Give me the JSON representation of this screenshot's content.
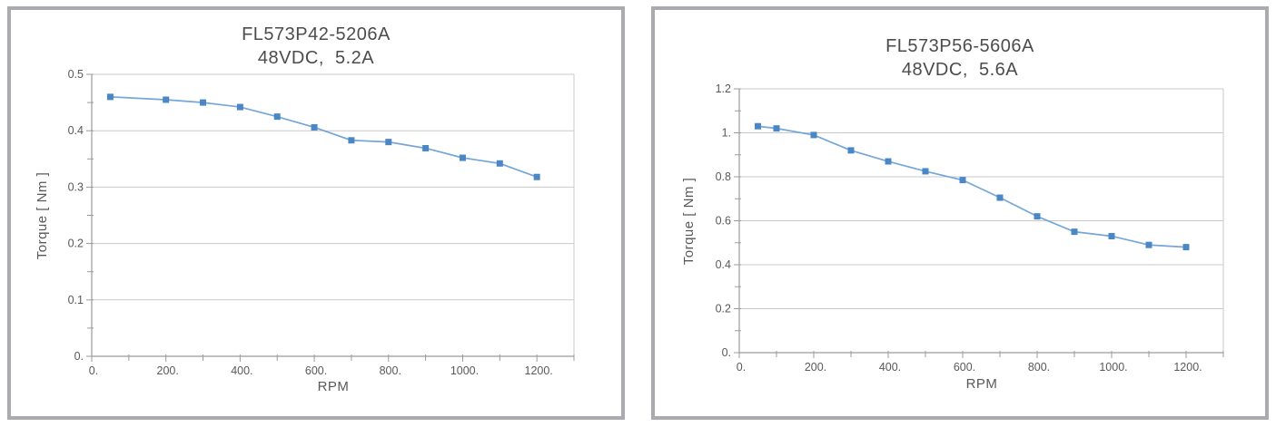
{
  "page": {
    "background": "#ffffff",
    "panel_border_color": "#ababaf"
  },
  "chart_data": [
    {
      "type": "line",
      "title": "FL573P42-5206A",
      "subtitle": "48VDC,  5.2A",
      "xlabel": "RPM",
      "ylabel": "Torque [ Nm ]",
      "x": [
        50,
        200,
        300,
        400,
        500,
        600,
        700,
        800,
        900,
        1000,
        1100,
        1200
      ],
      "y": [
        0.46,
        0.455,
        0.45,
        0.442,
        0.425,
        0.406,
        0.383,
        0.38,
        0.369,
        0.352,
        0.342,
        0.318
      ],
      "xlim": [
        0,
        1300
      ],
      "ylim": [
        0,
        0.5
      ],
      "x_major_ticks": [
        0,
        200,
        400,
        600,
        800,
        1000,
        1200
      ],
      "x_tick_labels": [
        "0.",
        "200.",
        "400.",
        "600.",
        "800.",
        "1000.",
        "1200."
      ],
      "x_minor_step": 100,
      "y_major_ticks": [
        0,
        0.1,
        0.2,
        0.3,
        0.4,
        0.5
      ],
      "y_tick_labels": [
        "0.",
        "0.1",
        "0.2",
        "0.3",
        "0.4",
        "0.5"
      ],
      "y_minor_step": 0.05,
      "grid": "horizontal",
      "legend": "none",
      "line_color": "#74a6da",
      "marker_color": "#4b87c4",
      "grid_color": "#c9c9c9",
      "axis_color": "#9b9b9b"
    },
    {
      "type": "line",
      "title": "FL573P56-5606A",
      "subtitle": "48VDC,  5.6A",
      "xlabel": "RPM",
      "ylabel": "Torque [ Nm ]",
      "x": [
        50,
        100,
        200,
        300,
        400,
        500,
        600,
        700,
        800,
        900,
        1000,
        1100,
        1200
      ],
      "y": [
        1.03,
        1.02,
        0.99,
        0.92,
        0.87,
        0.825,
        0.785,
        0.705,
        0.62,
        0.55,
        0.53,
        0.49,
        0.48
      ],
      "xlim": [
        0,
        1300
      ],
      "ylim": [
        0,
        1.2
      ],
      "x_major_ticks": [
        0,
        200,
        400,
        600,
        800,
        1000,
        1200
      ],
      "x_tick_labels": [
        "0.",
        "200.",
        "400.",
        "600.",
        "800.",
        "1000.",
        "1200."
      ],
      "x_minor_step": 100,
      "y_major_ticks": [
        0,
        0.2,
        0.4,
        0.6,
        0.8,
        1.0,
        1.2
      ],
      "y_tick_labels": [
        "0.",
        "0.2",
        "0.4",
        "0.6",
        "0.8",
        "1.",
        "1.2"
      ],
      "y_minor_step": 0.1,
      "grid": "horizontal",
      "legend": "none",
      "line_color": "#74a6da",
      "marker_color": "#4b87c4",
      "grid_color": "#c9c9c9",
      "axis_color": "#9b9b9b"
    }
  ]
}
